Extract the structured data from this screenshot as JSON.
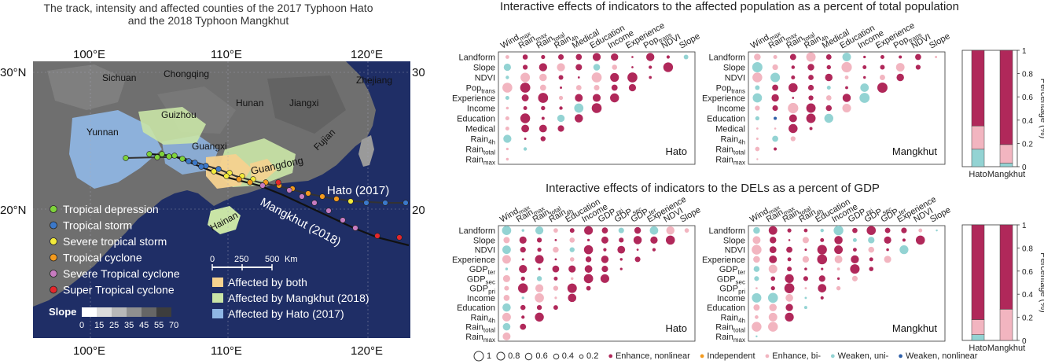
{
  "map": {
    "title_line1": "The track, intensity and affected counties of the 2017 Typhoon Hato",
    "title_line2": "and the 2018 Typhoon Mangkhut",
    "lon_labels": [
      "100°E",
      "110°E",
      "120°E"
    ],
    "lat_labels": [
      "30°N",
      "20°N"
    ],
    "place_labels": [
      "Sichuan",
      "Chongqing",
      "Zhejiang",
      "Hunan",
      "Jiangxi",
      "Guizhou",
      "Yunnan",
      "Guangxi",
      "Fujian",
      "Guangdong",
      "Hainan"
    ],
    "track_labels": {
      "hato": "Hato (2017)",
      "mangkhut": "Mangkhut (2018)"
    },
    "intensity_legend": [
      {
        "label": "Tropical depression",
        "color": "#7ed23b"
      },
      {
        "label": "Tropical storm",
        "color": "#3b78c9"
      },
      {
        "label": "Severe tropical storm",
        "color": "#f2ea3a"
      },
      {
        "label": "Tropical cyclone",
        "color": "#f39a1e"
      },
      {
        "label": "Severe Tropical cyclone",
        "color": "#c77bc0"
      },
      {
        "label": "Super Tropical cyclone",
        "color": "#e3272c"
      }
    ],
    "scale_bar": {
      "ticks": [
        "0",
        "250",
        "500"
      ],
      "unit": "Km"
    },
    "slope_legend": {
      "title": "Slope",
      "ticks": [
        "0",
        "15",
        "25",
        "35",
        "45",
        "55",
        "70"
      ]
    },
    "affected_legend": [
      {
        "label": "Affected by both",
        "color": "#f6d28f"
      },
      {
        "label": "Affected by Mangkhut (2018)",
        "color": "#c9e4a6"
      },
      {
        "label": "Affected by Hato (2017)",
        "color": "#8fb6e4"
      }
    ]
  },
  "panel_titles": {
    "top": "Interactive effects of indicators to the affected  population as a percent of total population",
    "bottom": "Interactive effects of indicators to the DELs as a percent of GDP"
  },
  "bottom_legend": {
    "sizes": [
      "1",
      "0.8",
      "0.6",
      "0.4",
      "0.2"
    ],
    "types": [
      {
        "label": "Enhance, nonlinear",
        "color": "#b0285a"
      },
      {
        "label": "Independent",
        "color": "#f39a1e"
      },
      {
        "label": "Enhance, bi-",
        "color": "#f2b5c0"
      },
      {
        "label": "Weaken, uni-",
        "color": "#93d3d3"
      },
      {
        "label": "Weaken, nonlinear",
        "color": "#2e5fa8"
      }
    ]
  },
  "chart_data": [
    {
      "type": "scatter",
      "name": "Hato population",
      "title": "Interactive effects of indicators to the affected  population as a percent of total population",
      "region": "Hato",
      "x_labels": [
        "Wind_max",
        "Rain_max",
        "Rain_total",
        "Rain_4h",
        "Medical",
        "Education",
        "Income",
        "Experience",
        "Pop_trans",
        "NDVI",
        "Slope"
      ],
      "y_labels": [
        "Landform",
        "Slope",
        "NDVI",
        "Pop_trans",
        "Experience",
        "Income",
        "Education",
        "Medical",
        "Rain_4h",
        "Rain_total",
        "Rain_max"
      ]
    },
    {
      "type": "scatter",
      "name": "Mangkhut population",
      "region": "Mangkhut",
      "x_labels": [
        "Wind_max",
        "Rain_max",
        "Rain_total",
        "Rain_4h",
        "Medical",
        "Education",
        "Income",
        "Experience",
        "Pop_trans",
        "NDVI",
        "Slope"
      ],
      "y_labels": [
        "Landform",
        "Slope",
        "NDVI",
        "Pop_trans",
        "Experience",
        "Income",
        "Education",
        "Medical",
        "Rain_4h",
        "Rain_total",
        "Rain_max"
      ]
    },
    {
      "type": "scatter",
      "name": "Hato DELs",
      "title": "Interactive effects of indicators to the DELs as a percent of GDP",
      "region": "Hato",
      "x_labels": [
        "Wind_max",
        "Rain_max",
        "Rain_total",
        "Rain_4h",
        "Education",
        "Income",
        "GDP_pri",
        "GDP_sec",
        "GDP_ter",
        "Experience",
        "NDVI",
        "Slope"
      ],
      "y_labels": [
        "Landform",
        "Slope",
        "NDVI",
        "Experience",
        "GDP_ter",
        "GDP_sec",
        "GDP_pri",
        "Income",
        "Education",
        "Rain_4h",
        "Rain_total",
        "Rain_max"
      ]
    },
    {
      "type": "scatter",
      "name": "Mangkhut DELs",
      "region": "Mangkhut",
      "x_labels": [
        "Wind_max",
        "Rain_max",
        "Rain_total",
        "Rain_4h",
        "Education",
        "Income",
        "GDP_pri",
        "GDP_sec",
        "GDP_ter",
        "Experience",
        "NDVI",
        "Slope"
      ],
      "y_labels": [
        "Landform",
        "Slope",
        "NDVI",
        "Experience",
        "GDP_ter",
        "GDP_sec",
        "GDP_pri",
        "Income",
        "Education",
        "Rain_4h",
        "Rain_total",
        "Rain_max"
      ]
    },
    {
      "type": "bar",
      "name": "Population percentage",
      "categories": [
        "Hato",
        "Mangkhut"
      ],
      "ylabel": "Percentage (%)",
      "yticks": [
        "0",
        "0.2",
        "0.4",
        "0.6",
        "0.8",
        "1"
      ],
      "ylim": [
        0,
        1
      ],
      "series": [
        {
          "name": "Weaken, uni-",
          "values": [
            0.15,
            0.03
          ]
        },
        {
          "name": "Enhance, bi-",
          "values": [
            0.2,
            0.16
          ]
        },
        {
          "name": "Enhance, nonlinear",
          "values": [
            0.65,
            0.81
          ]
        }
      ]
    },
    {
      "type": "bar",
      "name": "DELs percentage",
      "categories": [
        "Hato",
        "Mangkhut"
      ],
      "ylabel": "Percentage (%)",
      "yticks": [
        "0",
        "0.2",
        "0.4",
        "0.6",
        "0.8",
        "1"
      ],
      "ylim": [
        0,
        1
      ],
      "series": [
        {
          "name": "Weaken, uni-",
          "values": [
            0.05,
            0.0
          ]
        },
        {
          "name": "Enhance, bi-",
          "values": [
            0.13,
            0.27
          ]
        },
        {
          "name": "Enhance, nonlinear",
          "values": [
            0.82,
            0.73
          ]
        }
      ]
    }
  ]
}
